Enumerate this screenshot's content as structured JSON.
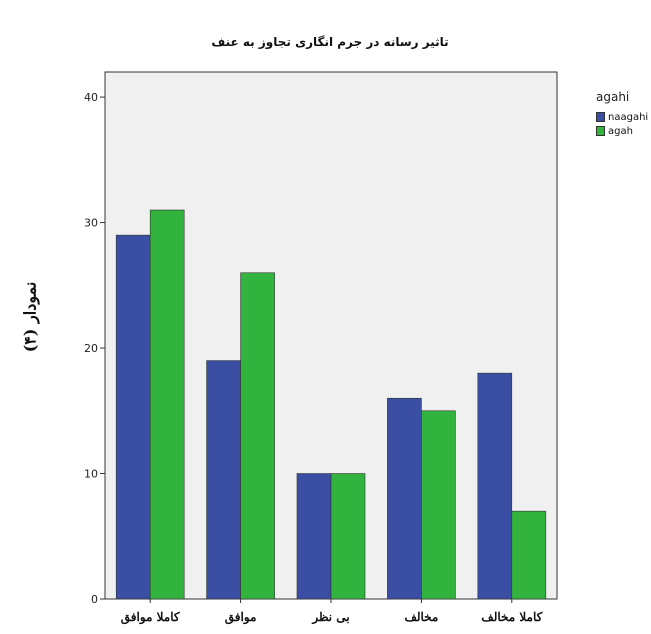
{
  "side_caption": "نمودار (۴)",
  "chart_data": {
    "type": "bar",
    "title": "تاثیر رسانه در جرم انگاری تجاوز به عنف",
    "xlabel": "",
    "ylabel": "",
    "categories": [
      "کاملا موافق",
      "موافق",
      "بی نظر",
      "مخالف",
      "کاملا مخالف"
    ],
    "series": [
      {
        "name": "naagahi",
        "color": "#3a4fa3",
        "values": [
          29,
          19,
          10,
          16,
          18
        ]
      },
      {
        "name": "agah",
        "color": "#31b33d",
        "values": [
          31,
          26,
          10,
          15,
          7
        ]
      }
    ],
    "ylim": [
      0,
      42
    ],
    "yticks": [
      0,
      10,
      20,
      30,
      40
    ],
    "legend_title": "agahi",
    "legend_position": "right",
    "grid": false,
    "plot_background": "#f0f0f0"
  }
}
